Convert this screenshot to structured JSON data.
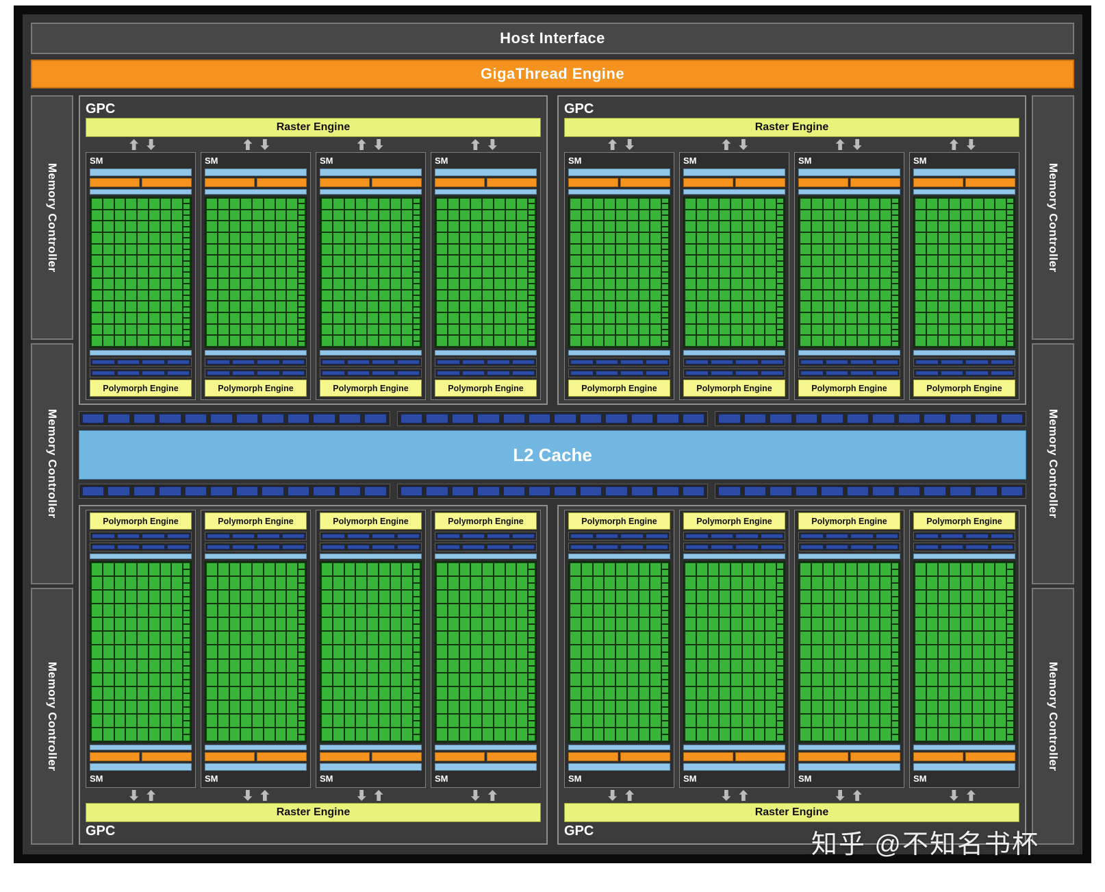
{
  "labels": {
    "host_interface": "Host Interface",
    "gigathread": "GigaThread Engine",
    "gpc": "GPC",
    "raster": "Raster Engine",
    "sm": "SM",
    "polymorph": "Polymorph Engine",
    "l2": "L2 Cache",
    "memory_controller": "Memory Controller"
  },
  "watermark": "知乎 @不知名书杯",
  "colors": {
    "background": "#333333",
    "frame": "#0b0b0b",
    "orange": "#f6921e",
    "raster_yellow_green": "#e9f27b",
    "polymorph_yellow": "#f6f78c",
    "core_green": "#38b438",
    "light_blue": "#92c6e9",
    "l2_blue": "#72b7e2",
    "segment_blue": "#2b4ba5",
    "panel_gray": "#474747"
  },
  "structure": {
    "gpc_count": 4,
    "sms_per_gpc": 4,
    "memory_controllers_per_side": 3,
    "core_columns": 8,
    "core_rows": 13,
    "sm_segment_rows": 2,
    "segments_per_sm_row": 4,
    "l2_segment_groups_per_strip": 3,
    "segments_per_l2_group": 12
  }
}
